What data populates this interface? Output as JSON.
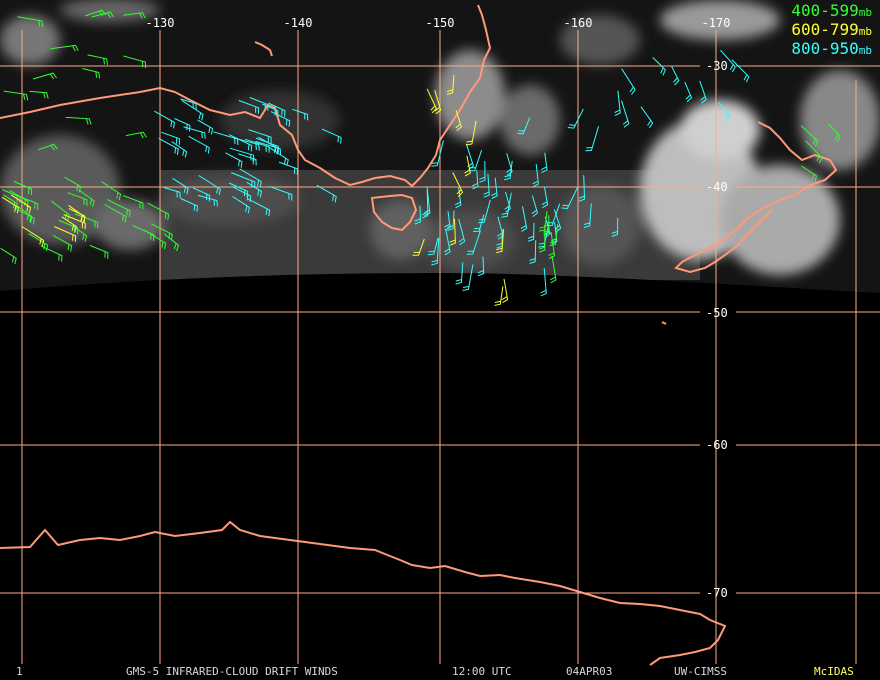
{
  "map": {
    "longitude_labels": [
      "-130",
      "-140",
      "-150",
      "-160",
      "-170"
    ],
    "latitude_labels": [
      "-30",
      "-40",
      "-50",
      "-60",
      "-70"
    ]
  },
  "legend": [
    {
      "range": "400-599",
      "unit": "mb",
      "color": "#33ff33"
    },
    {
      "range": "600-799",
      "unit": "mb",
      "color": "#ffff33"
    },
    {
      "range": "800-950",
      "unit": "mb",
      "color": "#33ffff"
    }
  ],
  "footer": {
    "frame": "1",
    "product": "GMS-5 INFRARED-CLOUD DRIFT WINDS",
    "time": "12:00 UTC",
    "date": "04APR03",
    "source": "UW-CIMSS",
    "brand": "McIDAS",
    "brand_color": "#ffff66"
  },
  "colors": {
    "grid": "#ffaa88",
    "coast": "#ff9977"
  }
}
